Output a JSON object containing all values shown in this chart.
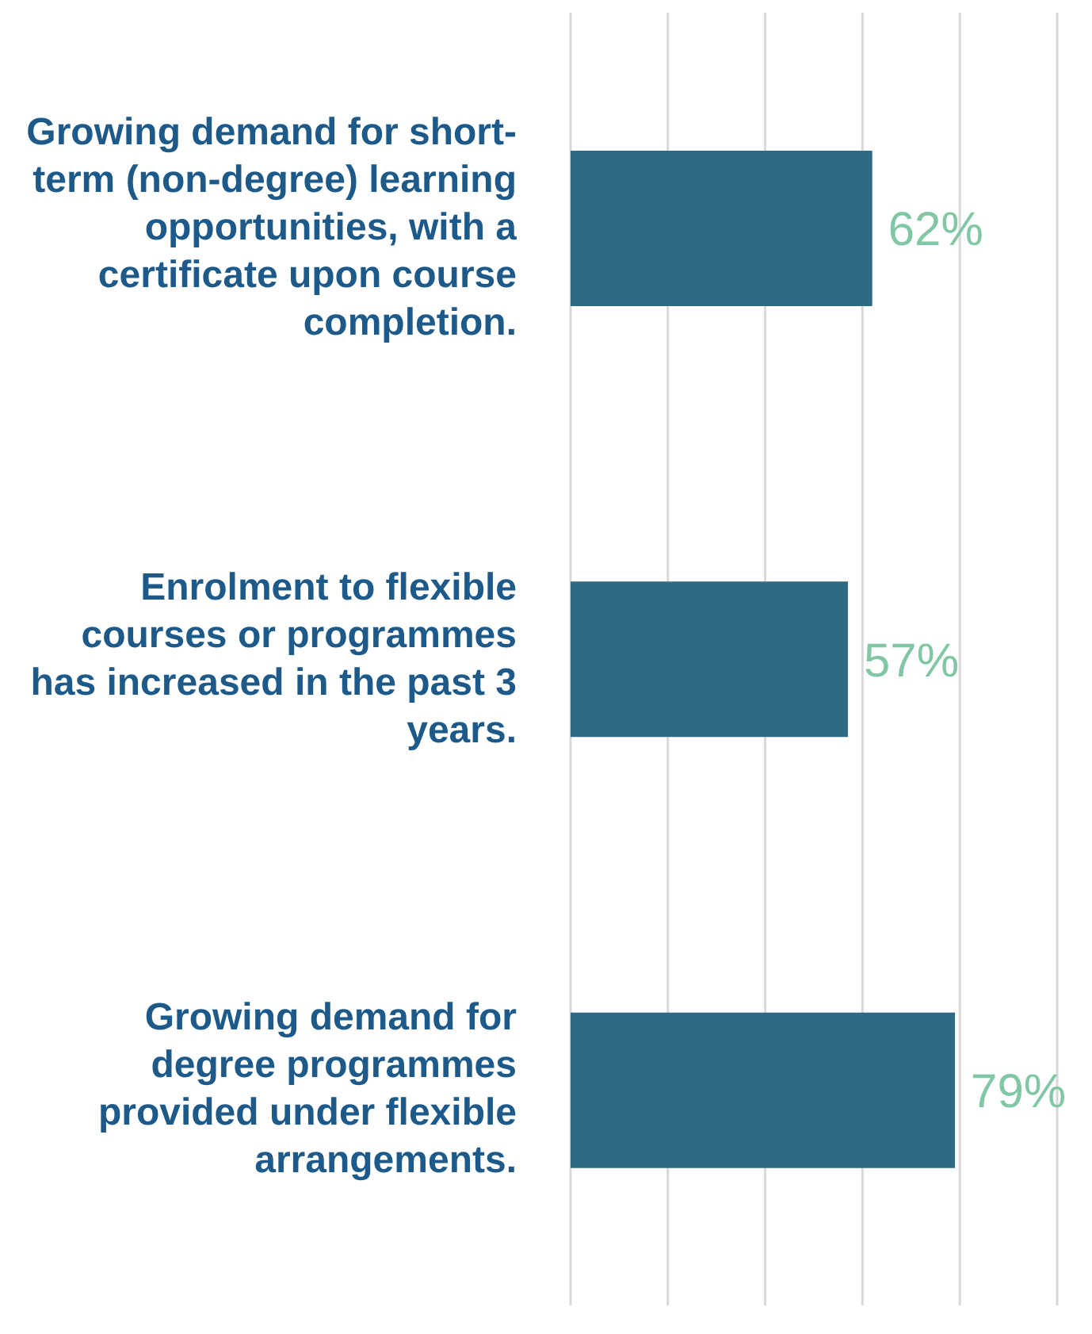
{
  "chart_data": {
    "type": "bar",
    "orientation": "horizontal",
    "categories": [
      "Growing demand for short-term (non-degree) learning opportunities, with a certificate upon course completion.",
      "Enrolment to flexible courses or programmes has increased in the past 3 years.",
      "Growing demand for degree programmes provided under flexible arrangements."
    ],
    "values": [
      62,
      57,
      79
    ],
    "value_labels": [
      "62%",
      "57%",
      "79%"
    ],
    "color": "#2e6a86",
    "xlim": [
      0,
      100
    ],
    "xticks": [
      {
        "value": 0,
        "label": null
      },
      {
        "value": 20,
        "label": null
      },
      {
        "value": 40,
        "label": null
      },
      {
        "value": 60,
        "label": null
      },
      {
        "value": 80,
        "label": null
      },
      {
        "value": 100,
        "label": null
      }
    ],
    "grid": "x",
    "tick_labels": "y"
  }
}
